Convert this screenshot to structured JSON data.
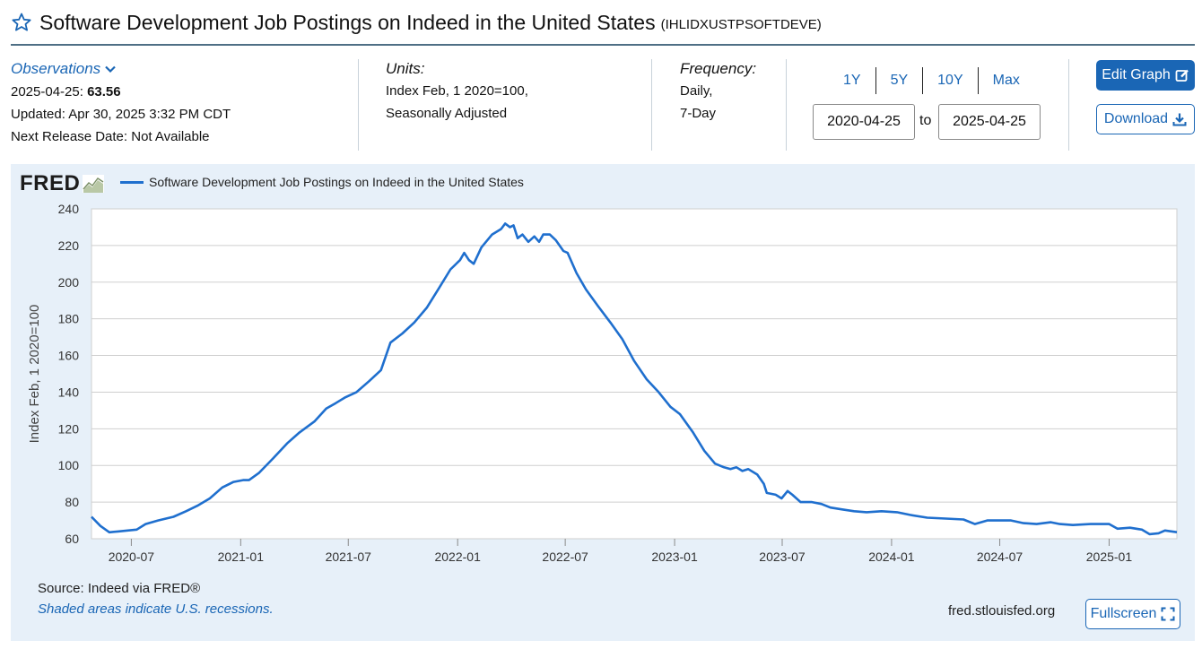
{
  "header": {
    "title": "Software Development Job Postings on Indeed in the United States",
    "series_id": "(IHLIDXUSTPSOFTDEVE)"
  },
  "observations": {
    "link_label": "Observations",
    "date": "2025-04-25:",
    "value": "63.56",
    "updated": "Updated: Apr 30, 2025 3:32 PM CDT",
    "next_release": "Next Release Date: Not Available"
  },
  "units": {
    "label": "Units:",
    "line1": "Index Feb, 1 2020=100,",
    "line2": "Seasonally Adjusted"
  },
  "frequency": {
    "label": "Frequency:",
    "line1": "Daily,",
    "line2": "7-Day"
  },
  "range": {
    "buttons": [
      "1Y",
      "5Y",
      "10Y",
      "Max"
    ],
    "start": "2020-04-25",
    "to_label": "to",
    "end": "2025-04-25"
  },
  "actions": {
    "edit_label": "Edit Graph",
    "download_label": "Download",
    "fullscreen_label": "Fullscreen"
  },
  "footer": {
    "source": "Source: Indeed via FRED®",
    "recession_note": "Shaded areas indicate U.S. recessions.",
    "url": "fred.stlouisfed.org"
  },
  "logo_text": "FRED",
  "colors": {
    "line": "#1f6fce",
    "accent": "#1a66b5",
    "panel": "#e7f0f9"
  },
  "chart_data": {
    "type": "line",
    "title": "",
    "ylabel": "Index Feb, 1 2020=100",
    "xlabel": "",
    "ylim": [
      60,
      240
    ],
    "yticks": [
      60,
      80,
      100,
      120,
      140,
      160,
      180,
      200,
      220,
      240
    ],
    "xlim": [
      "2020-04-25",
      "2025-04-25"
    ],
    "xticks": [
      "2020-07",
      "2021-01",
      "2021-07",
      "2022-01",
      "2022-07",
      "2023-01",
      "2023-07",
      "2024-01",
      "2024-07",
      "2025-01"
    ],
    "grid": true,
    "legend": "top-left",
    "series": [
      {
        "name": "Software Development Job Postings on Indeed in the United States",
        "points": [
          [
            "2020-04-25",
            72
          ],
          [
            "2020-05-10",
            67
          ],
          [
            "2020-05-25",
            63.5
          ],
          [
            "2020-06-10",
            64
          ],
          [
            "2020-06-25",
            64.5
          ],
          [
            "2020-07-10",
            65
          ],
          [
            "2020-07-25",
            68
          ],
          [
            "2020-08-15",
            70
          ],
          [
            "2020-09-10",
            72
          ],
          [
            "2020-10-01",
            75
          ],
          [
            "2020-10-20",
            78
          ],
          [
            "2020-11-10",
            82
          ],
          [
            "2020-12-01",
            88
          ],
          [
            "2020-12-20",
            91
          ],
          [
            "2021-01-05",
            92
          ],
          [
            "2021-01-15",
            92
          ],
          [
            "2021-02-01",
            96
          ],
          [
            "2021-02-25",
            104
          ],
          [
            "2021-03-20",
            112
          ],
          [
            "2021-04-10",
            118
          ],
          [
            "2021-05-05",
            124
          ],
          [
            "2021-05-25",
            131
          ],
          [
            "2021-06-10",
            134
          ],
          [
            "2021-06-25",
            137
          ],
          [
            "2021-07-15",
            140
          ],
          [
            "2021-08-05",
            146
          ],
          [
            "2021-08-25",
            152
          ],
          [
            "2021-09-10",
            167
          ],
          [
            "2021-09-30",
            172
          ],
          [
            "2021-10-20",
            178
          ],
          [
            "2021-11-10",
            186
          ],
          [
            "2021-12-01",
            197
          ],
          [
            "2021-12-20",
            207
          ],
          [
            "2022-01-05",
            212
          ],
          [
            "2022-01-12",
            216
          ],
          [
            "2022-01-20",
            212
          ],
          [
            "2022-01-28",
            210
          ],
          [
            "2022-02-10",
            219
          ],
          [
            "2022-02-28",
            226
          ],
          [
            "2022-03-15",
            229
          ],
          [
            "2022-03-22",
            232
          ],
          [
            "2022-03-30",
            230
          ],
          [
            "2022-04-05",
            231
          ],
          [
            "2022-04-12",
            224
          ],
          [
            "2022-04-20",
            226
          ],
          [
            "2022-04-30",
            222
          ],
          [
            "2022-05-10",
            225
          ],
          [
            "2022-05-18",
            222
          ],
          [
            "2022-05-25",
            226
          ],
          [
            "2022-06-05",
            226
          ],
          [
            "2022-06-15",
            223
          ],
          [
            "2022-06-28",
            217
          ],
          [
            "2022-07-05",
            216
          ],
          [
            "2022-07-20",
            205
          ],
          [
            "2022-08-05",
            196
          ],
          [
            "2022-08-25",
            187
          ],
          [
            "2022-09-15",
            178
          ],
          [
            "2022-10-05",
            169
          ],
          [
            "2022-10-25",
            157
          ],
          [
            "2022-11-15",
            147
          ],
          [
            "2022-12-05",
            140
          ],
          [
            "2022-12-25",
            132
          ],
          [
            "2023-01-10",
            128
          ],
          [
            "2023-02-01",
            118
          ],
          [
            "2023-02-20",
            108
          ],
          [
            "2023-03-10",
            101
          ],
          [
            "2023-03-25",
            99
          ],
          [
            "2023-04-05",
            98
          ],
          [
            "2023-04-15",
            99
          ],
          [
            "2023-04-25",
            97
          ],
          [
            "2023-05-05",
            98
          ],
          [
            "2023-05-20",
            95
          ],
          [
            "2023-05-31",
            90
          ],
          [
            "2023-06-05",
            85
          ],
          [
            "2023-06-20",
            84
          ],
          [
            "2023-06-30",
            82
          ],
          [
            "2023-07-10",
            86
          ],
          [
            "2023-07-18",
            84
          ],
          [
            "2023-08-01",
            80
          ],
          [
            "2023-08-20",
            80
          ],
          [
            "2023-09-05",
            79
          ],
          [
            "2023-09-20",
            77
          ],
          [
            "2023-10-10",
            76
          ],
          [
            "2023-10-30",
            75
          ],
          [
            "2023-11-20",
            74.5
          ],
          [
            "2023-12-15",
            75
          ],
          [
            "2024-01-10",
            74.5
          ],
          [
            "2024-02-01",
            73
          ],
          [
            "2024-03-01",
            71.5
          ],
          [
            "2024-04-01",
            71
          ],
          [
            "2024-05-01",
            70.5
          ],
          [
            "2024-05-20",
            68
          ],
          [
            "2024-06-10",
            70
          ],
          [
            "2024-07-01",
            70
          ],
          [
            "2024-07-20",
            70
          ],
          [
            "2024-08-10",
            68.5
          ],
          [
            "2024-09-01",
            68
          ],
          [
            "2024-09-25",
            69
          ],
          [
            "2024-10-10",
            68
          ],
          [
            "2024-11-01",
            67.5
          ],
          [
            "2024-12-01",
            68
          ],
          [
            "2025-01-01",
            68
          ],
          [
            "2025-01-15",
            65.5
          ],
          [
            "2025-02-05",
            66
          ],
          [
            "2025-02-25",
            65
          ],
          [
            "2025-03-10",
            62.5
          ],
          [
            "2025-03-25",
            63
          ],
          [
            "2025-04-05",
            64.5
          ],
          [
            "2025-04-25",
            63.56
          ]
        ]
      }
    ]
  }
}
